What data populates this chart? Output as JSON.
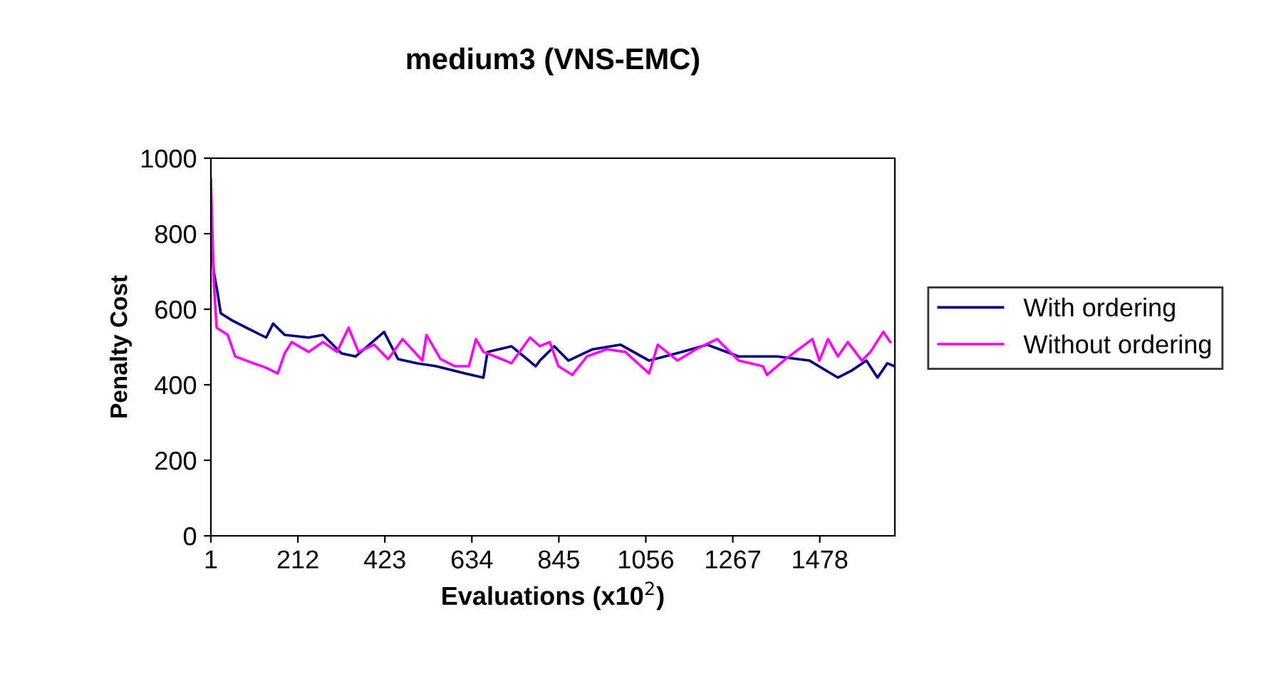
{
  "chart_data": {
    "type": "line",
    "title": "medium3 (VNS-EMC)",
    "xlabel": "Evaluations (x10$^{2}$)",
    "ylabel": "Penalty Cost",
    "xlim": [
      1,
      1660
    ],
    "xticks": [
      1,
      212,
      423,
      634,
      845,
      1056,
      1267,
      1478
    ],
    "ylim": [
      0,
      1000
    ],
    "yticks": [
      0,
      200,
      400,
      600,
      800,
      1000
    ],
    "grid": false,
    "legend": "right",
    "marker": "none",
    "line_style": "solid",
    "series": [
      {
        "name": "With ordering",
        "color": "#000080",
        "x": [
          1,
          8,
          18,
          25,
          53,
          87,
          135,
          152,
          180,
          238,
          273,
          318,
          352,
          421,
          455,
          500,
          548,
          617,
          662,
          672,
          730,
          789,
          799,
          834,
          868,
          927,
          995,
          1064,
          1143,
          1205,
          1281,
          1374,
          1453,
          1522,
          1556,
          1591,
          1618,
          1642,
          1659
        ],
        "values": [
          800,
          700,
          638,
          589,
          570,
          551,
          525,
          562,
          532,
          525,
          532,
          483,
          475,
          540,
          468,
          457,
          449,
          430,
          419,
          487,
          502,
          449,
          464,
          502,
          464,
          494,
          506,
          464,
          487,
          506,
          475,
          475,
          464,
          419,
          438,
          464,
          419,
          457,
          449
        ]
      },
      {
        "name": "Without ordering",
        "color": "#ff00ff",
        "x": [
          1,
          8,
          15,
          42,
          60,
          87,
          104,
          135,
          163,
          180,
          197,
          238,
          273,
          307,
          335,
          359,
          397,
          431,
          466,
          514,
          524,
          558,
          593,
          627,
          644,
          662,
          706,
          730,
          775,
          799,
          823,
          844,
          878,
          913,
          961,
          1006,
          1064,
          1085,
          1133,
          1178,
          1229,
          1281,
          1340,
          1350,
          1395,
          1460,
          1477,
          1498,
          1522,
          1546,
          1580,
          1601,
          1632,
          1649
        ],
        "values": [
          945,
          675,
          551,
          532,
          475,
          464,
          457,
          445,
          430,
          483,
          513,
          487,
          513,
          487,
          551,
          487,
          506,
          468,
          521,
          464,
          532,
          468,
          449,
          449,
          521,
          487,
          468,
          457,
          525,
          502,
          513,
          449,
          426,
          475,
          494,
          487,
          430,
          506,
          464,
          494,
          521,
          464,
          449,
          426,
          468,
          521,
          464,
          521,
          475,
          513,
          464,
          487,
          540,
          513
        ]
      }
    ]
  }
}
